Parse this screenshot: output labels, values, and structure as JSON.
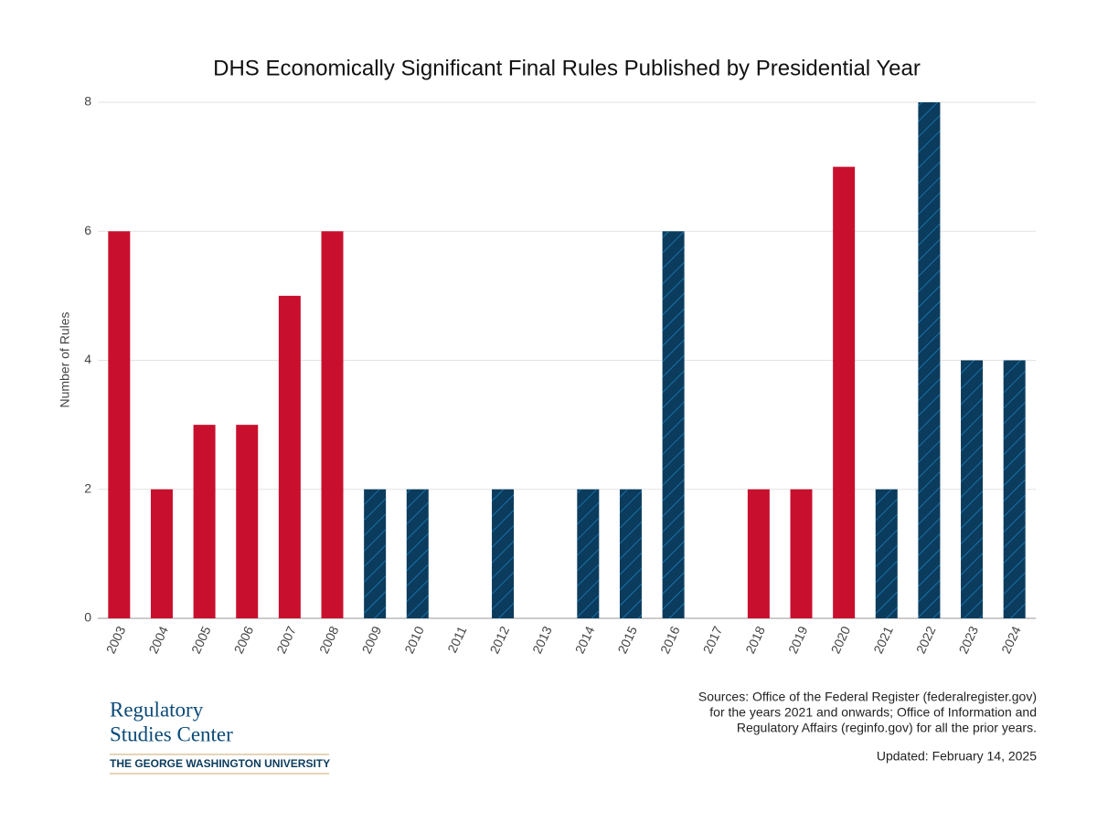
{
  "chart_data": {
    "type": "bar",
    "title": "DHS Economically Significant Final Rules Published by Presidential Year",
    "y_label": "Number of Rules",
    "categories": [
      "2003",
      "2004",
      "2005",
      "2006",
      "2007",
      "2008",
      "2009",
      "2010",
      "2011",
      "2012",
      "2013",
      "2014",
      "2015",
      "2016",
      "2017",
      "2018",
      "2019",
      "2020",
      "2021",
      "2022",
      "2023",
      "2024"
    ],
    "values": [
      6,
      2,
      3,
      3,
      5,
      6,
      2,
      2,
      0,
      2,
      0,
      2,
      2,
      6,
      0,
      2,
      2,
      7,
      2,
      8,
      4,
      4
    ],
    "colors": [
      "#c8102e",
      "#c8102e",
      "#c8102e",
      "#c8102e",
      "#c8102e",
      "#c8102e",
      "#0b3c5d",
      "#0b3c5d",
      "#0b3c5d",
      "#0b3c5d",
      "#0b3c5d",
      "#0b3c5d",
      "#0b3c5d",
      "#0b3c5d",
      "#c8102e",
      "#c8102e",
      "#c8102e",
      "#c8102e",
      "#0b3c5d",
      "#0b3c5d",
      "#0b3c5d",
      "#0b3c5d"
    ],
    "hatch": {
      "over": "#0b3c5d",
      "color": "#1f8ad0"
    },
    "ylim": [
      0,
      8
    ],
    "yticks": [
      0,
      2,
      4,
      6,
      8
    ],
    "grid": true,
    "source": [
      "Sources: Office of the Federal Register (federalregister.gov)",
      "for the years 2021 and onwards; Office of Information and",
      "Regulatory Affairs (reginfo.gov) for all the prior years."
    ],
    "updated": "Updated: February 14, 2025"
  },
  "logo": {
    "line1": "Regulatory",
    "line2": "Studies Center",
    "university": "THE GEORGE WASHINGTON UNIVERSITY"
  }
}
